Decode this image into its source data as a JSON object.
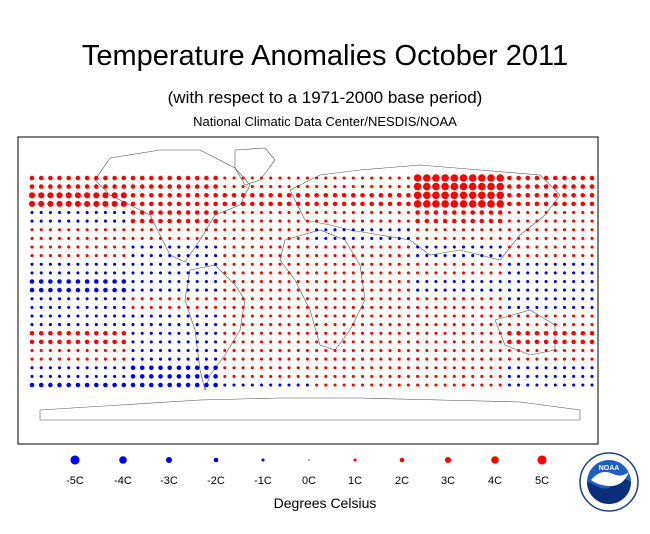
{
  "title": "Temperature Anomalies October 2011",
  "subtitle": "(with respect to a 1971-2000 base period)",
  "credit": "National Climatic Data Center/NESDIS/NOAA",
  "legend": {
    "labels": [
      "-5C",
      "-4C",
      "-3C",
      "-2C",
      "-1C",
      "0C",
      "1C",
      "2C",
      "3C",
      "4C",
      "5C"
    ],
    "values": [
      -5,
      -4,
      -3,
      -2,
      -1,
      0,
      1,
      2,
      3,
      4,
      5
    ],
    "units": "Degrees Celsius"
  },
  "colors": {
    "warm": "#ff0000",
    "cold": "#0000ff",
    "frame": "#000000"
  },
  "logo": {
    "name": "noaa-logo",
    "text": "NOAA"
  },
  "chart_data": {
    "type": "scatter",
    "description_encoding": "anomaly by latitude band; positive = red, negative = blue, size = magnitude",
    "lat_bands": [
      75,
      70,
      65,
      60,
      55,
      50,
      45,
      40,
      35,
      30,
      25,
      20,
      15,
      10,
      5,
      0,
      -5,
      -10,
      -15,
      -20,
      -25,
      -30,
      -35,
      -40,
      -45,
      -50
    ],
    "zonal_pattern": [
      {
        "lat": 75,
        "west_pacific": 2,
        "north_america": 2,
        "atlantic": 1,
        "europe": 1,
        "siberia": 4,
        "east_pacific": 2
      },
      {
        "lat": 65,
        "west_pacific": 3,
        "north_america": 2,
        "atlantic": 2,
        "europe": 2,
        "siberia": 4,
        "east_pacific": 2
      },
      {
        "lat": 55,
        "west_pacific": -1,
        "north_america": 2,
        "atlantic": 1,
        "europe": 1,
        "siberia": 2,
        "east_pacific": 1
      },
      {
        "lat": 45,
        "west_pacific": 1,
        "north_america": 1,
        "atlantic": 1,
        "europe": -1,
        "siberia": 1,
        "east_pacific": 1
      },
      {
        "lat": 35,
        "west_pacific": 1,
        "north_america": -1,
        "atlantic": 1,
        "europe": 1,
        "siberia": -1,
        "east_pacific": 1
      },
      {
        "lat": 25,
        "west_pacific": -1,
        "north_america": -1,
        "atlantic": 1,
        "europe": 1,
        "siberia": 1,
        "east_pacific": -1
      },
      {
        "lat": 15,
        "west_pacific": -2,
        "north_america": -1,
        "atlantic": 1,
        "europe": 1,
        "siberia": -1,
        "east_pacific": -1
      },
      {
        "lat": 5,
        "west_pacific": -1,
        "north_america": 1,
        "atlantic": 1,
        "europe": 1,
        "siberia": 1,
        "east_pacific": -1
      },
      {
        "lat": -5,
        "west_pacific": -1,
        "north_america": -1,
        "atlantic": 1,
        "europe": 1,
        "siberia": 1,
        "east_pacific": 1
      },
      {
        "lat": -15,
        "west_pacific": 2,
        "north_america": -1,
        "atlantic": 1,
        "europe": 1,
        "siberia": 1,
        "east_pacific": 2
      },
      {
        "lat": -25,
        "west_pacific": 1,
        "north_america": -1,
        "atlantic": 1,
        "europe": 1,
        "siberia": 1,
        "east_pacific": 1
      },
      {
        "lat": -35,
        "west_pacific": -1,
        "north_america": -2,
        "atlantic": 1,
        "europe": 1,
        "siberia": 1,
        "east_pacific": -1
      },
      {
        "lat": -45,
        "west_pacific": -2,
        "north_america": -2,
        "atlantic": -1,
        "europe": 1,
        "siberia": 1,
        "east_pacific": -1
      }
    ]
  }
}
